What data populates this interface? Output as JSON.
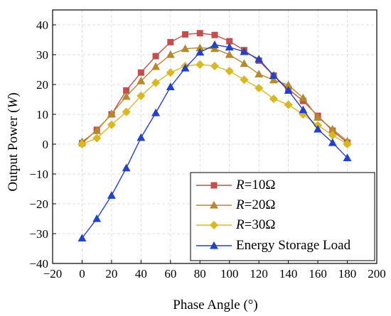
{
  "chart_data": {
    "type": "line",
    "xlabel": "Phase Angle (°)",
    "ylabel_prefix": "Output Power (",
    "ylabel_unit": "W",
    "ylabel_suffix": ")",
    "xlim": [
      -20,
      200
    ],
    "ylim": [
      -40,
      45
    ],
    "xticks": [
      -20,
      0,
      20,
      40,
      60,
      80,
      100,
      120,
      140,
      160,
      180,
      200
    ],
    "yticks": [
      -40,
      -30,
      -20,
      -10,
      0,
      10,
      20,
      30,
      40
    ],
    "grid": true,
    "legend_position": "bottom-right",
    "x": [
      0,
      10,
      20,
      30,
      40,
      50,
      60,
      70,
      80,
      90,
      100,
      110,
      120,
      130,
      140,
      150,
      160,
      170,
      180
    ],
    "series": [
      {
        "legend_var": "R",
        "legend_rest": "=10Ω",
        "color": "#c0504d",
        "marker": "square",
        "values": [
          0.3,
          4.8,
          10.0,
          18.0,
          24.0,
          29.5,
          34.2,
          36.8,
          37.2,
          36.6,
          34.5,
          31.5,
          28.0,
          23.0,
          18.5,
          14.5,
          9.5,
          4.5,
          0.5
        ]
      },
      {
        "legend_var": "R",
        "legend_rest": "=20Ω",
        "color": "#b5892e",
        "marker": "triangle-up",
        "values": [
          0.8,
          4.5,
          10.2,
          16.0,
          21.2,
          26.0,
          30.0,
          32.0,
          32.3,
          32.0,
          30.0,
          27.0,
          23.5,
          21.5,
          19.8,
          15.5,
          9.0,
          5.0,
          1.0
        ]
      },
      {
        "legend_var": "R",
        "legend_rest": "=30Ω",
        "color": "#d9b826",
        "marker": "diamond",
        "values": [
          0.0,
          2.0,
          6.5,
          10.8,
          16.2,
          20.6,
          24.0,
          26.2,
          26.7,
          26.2,
          24.5,
          21.6,
          18.8,
          15.2,
          13.2,
          10.0,
          6.3,
          3.0,
          0.0
        ]
      },
      {
        "legend_label": "Energy Storage Load",
        "color": "#2542c4",
        "marker": "triangle-up",
        "values": [
          -31.5,
          -25.0,
          -17.2,
          -8.0,
          2.2,
          10.5,
          19.2,
          25.5,
          30.8,
          33.3,
          32.5,
          31.0,
          28.5,
          23.0,
          18.0,
          11.5,
          5.0,
          0.5,
          -4.6
        ]
      }
    ]
  }
}
